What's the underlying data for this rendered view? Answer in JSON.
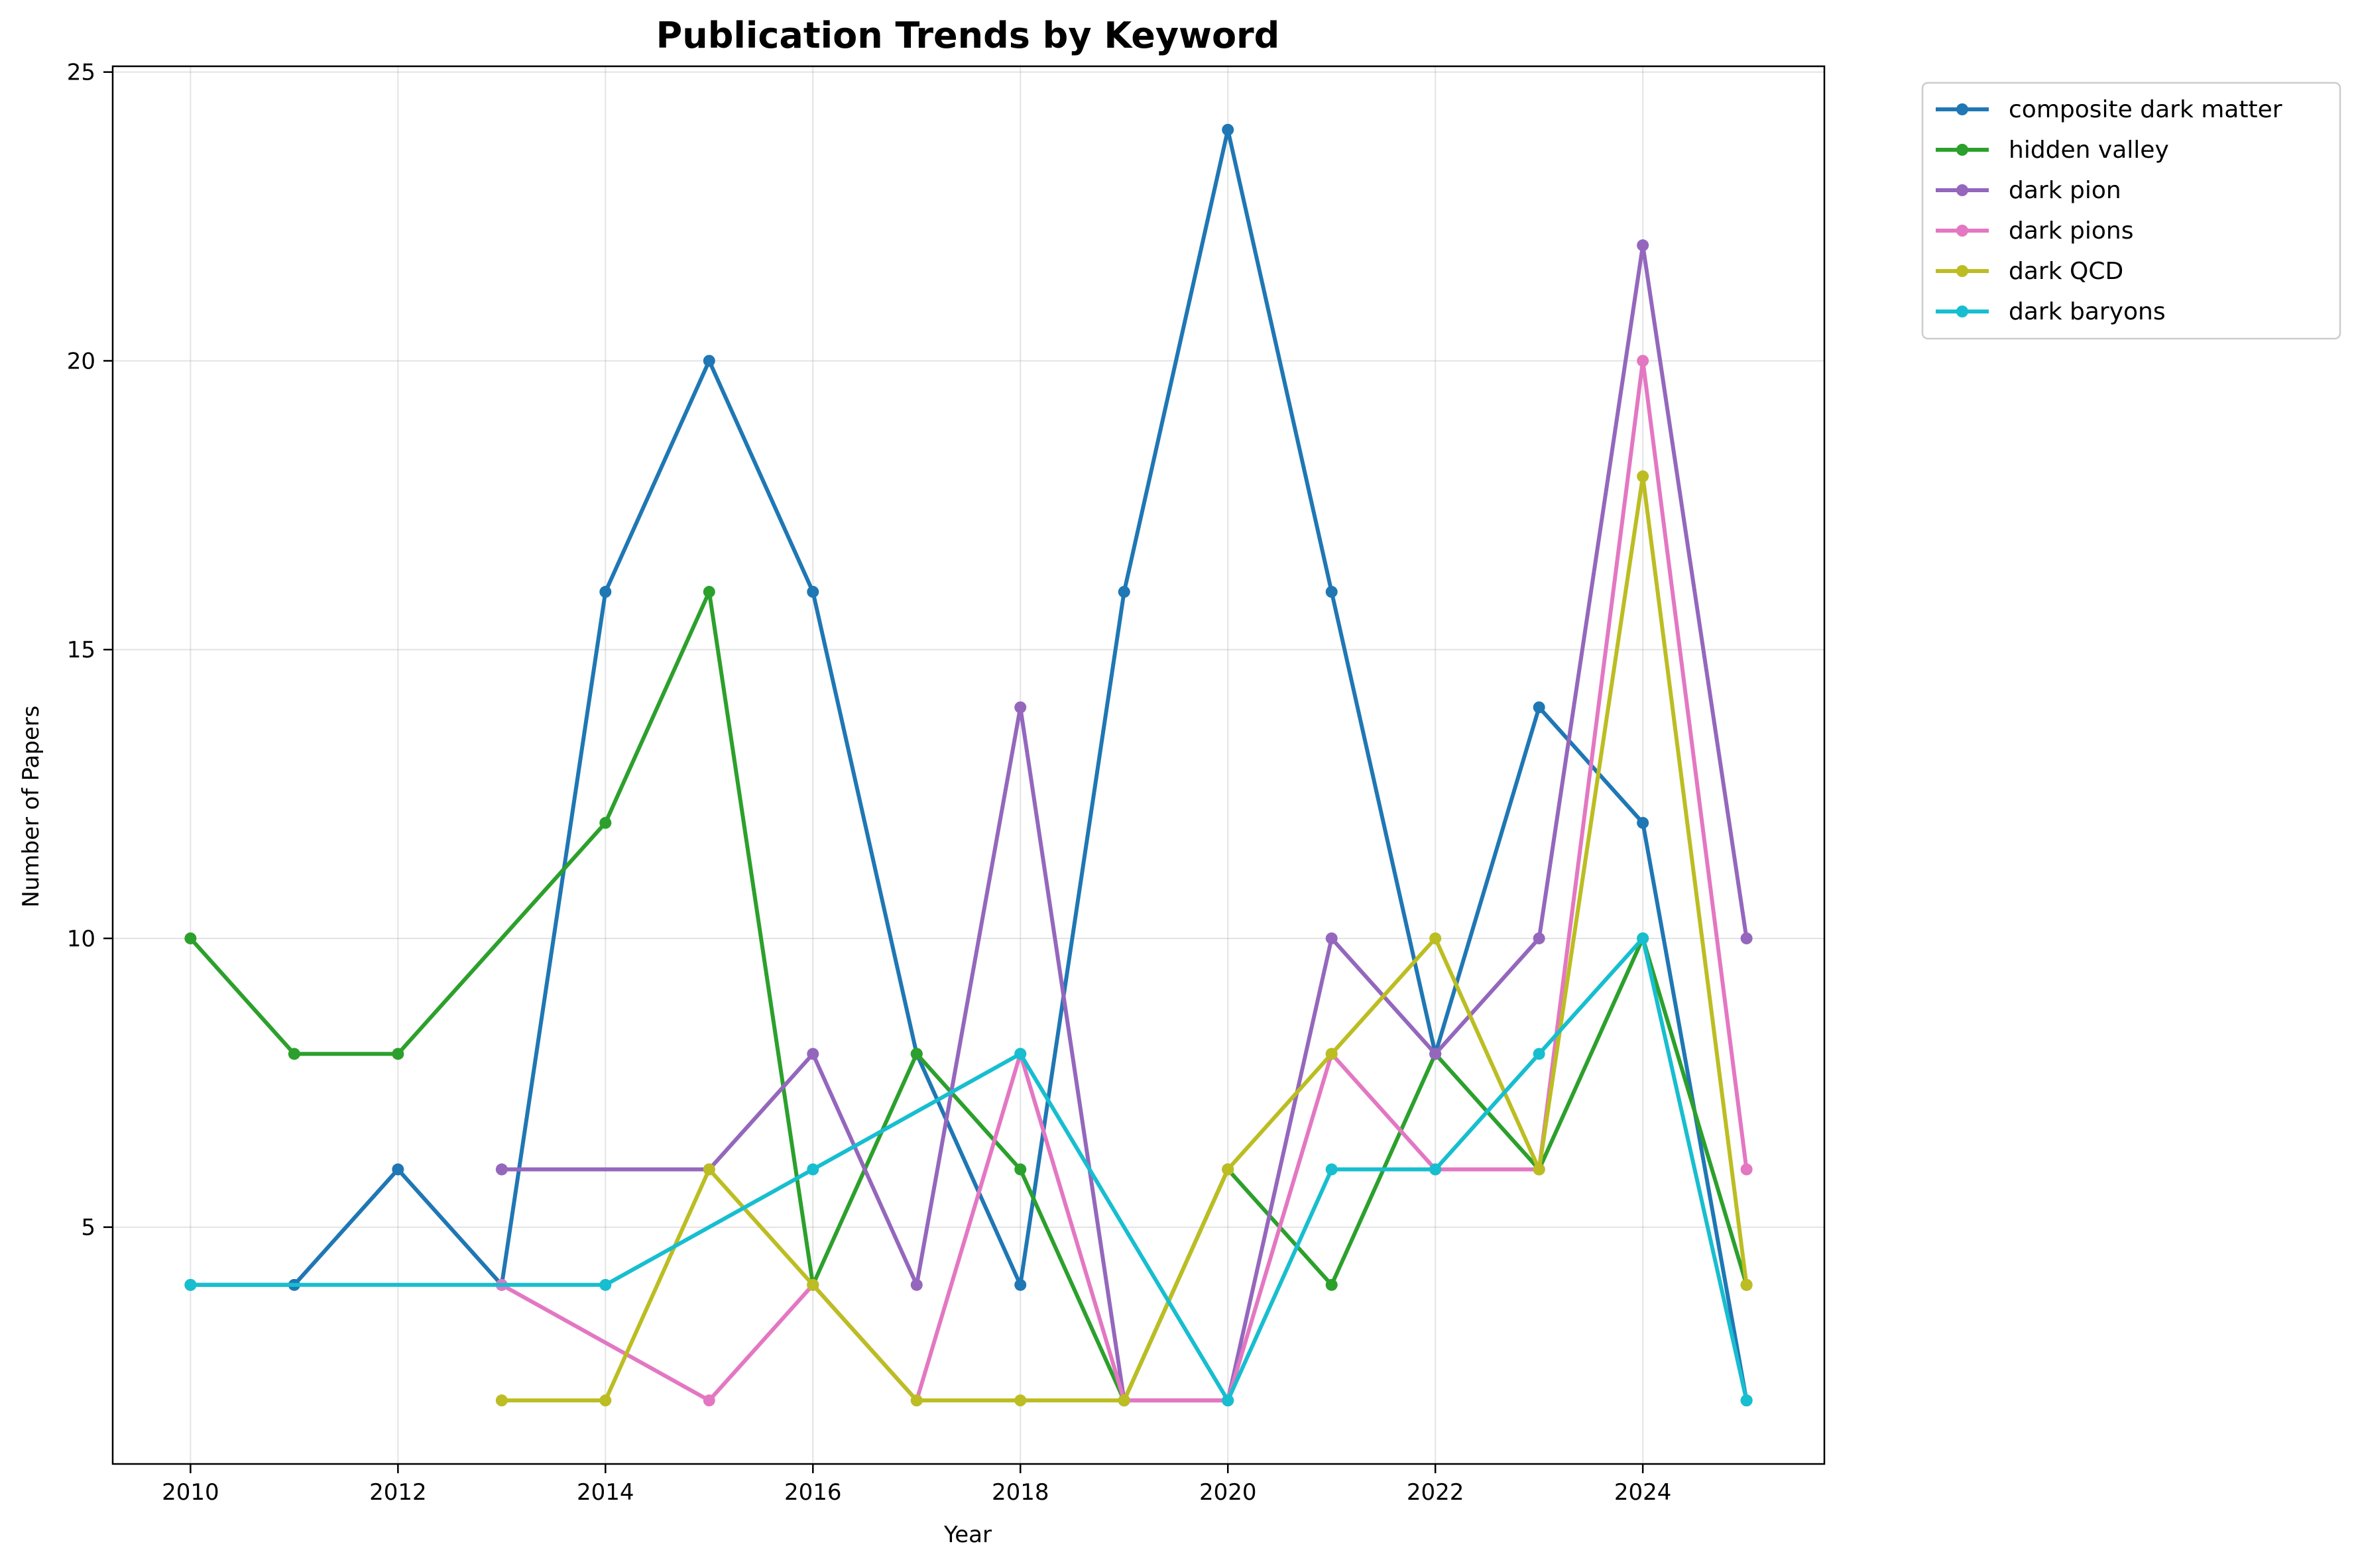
{
  "chart_data": {
    "type": "line",
    "title": "Publication Trends by Keyword",
    "xlabel": "Year",
    "ylabel": "Number of Papers",
    "xlim": [
      2009.25,
      2025.75
    ],
    "ylim": [
      0.9,
      25.1
    ],
    "x_ticks": [
      2010,
      2012,
      2014,
      2016,
      2018,
      2020,
      2022,
      2024
    ],
    "y_ticks": [
      5,
      10,
      15,
      20,
      25
    ],
    "grid": true,
    "legend_position": "outside-top-right",
    "series": [
      {
        "name": "composite dark matter",
        "color": "#1f77b4",
        "points": [
          [
            2010,
            4
          ],
          [
            2011,
            4
          ],
          [
            2012,
            6
          ],
          [
            2013,
            4
          ],
          [
            2014,
            16
          ],
          [
            2015,
            20
          ],
          [
            2016,
            16
          ],
          [
            2017,
            8
          ],
          [
            2018,
            4
          ],
          [
            2019,
            16
          ],
          [
            2020,
            24
          ],
          [
            2021,
            16
          ],
          [
            2022,
            8
          ],
          [
            2023,
            14
          ],
          [
            2024,
            12
          ],
          [
            2025,
            2
          ]
        ]
      },
      {
        "name": "hidden valley",
        "color": "#2ca02c",
        "points": [
          [
            2010,
            10
          ],
          [
            2011,
            8
          ],
          [
            2012,
            8
          ],
          [
            2014,
            12
          ],
          [
            2015,
            16
          ],
          [
            2016,
            4
          ],
          [
            2017,
            8
          ],
          [
            2018,
            6
          ],
          [
            2019,
            2
          ],
          [
            2020,
            6
          ],
          [
            2021,
            4
          ],
          [
            2022,
            8
          ],
          [
            2023,
            6
          ],
          [
            2024,
            10
          ],
          [
            2025,
            4
          ]
        ]
      },
      {
        "name": "dark pion",
        "color": "#9467bd",
        "points": [
          [
            2013,
            6
          ],
          [
            2015,
            6
          ],
          [
            2016,
            8
          ],
          [
            2017,
            4
          ],
          [
            2018,
            14
          ],
          [
            2019,
            2
          ],
          [
            2020,
            2
          ],
          [
            2021,
            10
          ],
          [
            2022,
            8
          ],
          [
            2023,
            10
          ],
          [
            2024,
            22
          ],
          [
            2025,
            10
          ]
        ]
      },
      {
        "name": "dark pions",
        "color": "#e377c2",
        "points": [
          [
            2013,
            4
          ],
          [
            2015,
            2
          ],
          [
            2016,
            4
          ],
          [
            2017,
            2
          ],
          [
            2018,
            8
          ],
          [
            2019,
            2
          ],
          [
            2020,
            2
          ],
          [
            2021,
            8
          ],
          [
            2022,
            6
          ],
          [
            2023,
            6
          ],
          [
            2024,
            20
          ],
          [
            2025,
            6
          ]
        ]
      },
      {
        "name": "dark QCD",
        "color": "#bcbd22",
        "points": [
          [
            2013,
            2
          ],
          [
            2014,
            2
          ],
          [
            2015,
            6
          ],
          [
            2016,
            4
          ],
          [
            2017,
            2
          ],
          [
            2018,
            2
          ],
          [
            2019,
            2
          ],
          [
            2020,
            6
          ],
          [
            2021,
            8
          ],
          [
            2022,
            10
          ],
          [
            2023,
            6
          ],
          [
            2024,
            18
          ],
          [
            2025,
            4
          ]
        ]
      },
      {
        "name": "dark baryons",
        "color": "#17becf",
        "points": [
          [
            2010,
            4
          ],
          [
            2014,
            4
          ],
          [
            2016,
            6
          ],
          [
            2018,
            8
          ],
          [
            2020,
            2
          ],
          [
            2021,
            6
          ],
          [
            2022,
            6
          ],
          [
            2023,
            8
          ],
          [
            2024,
            10
          ],
          [
            2025,
            2
          ]
        ]
      }
    ]
  }
}
